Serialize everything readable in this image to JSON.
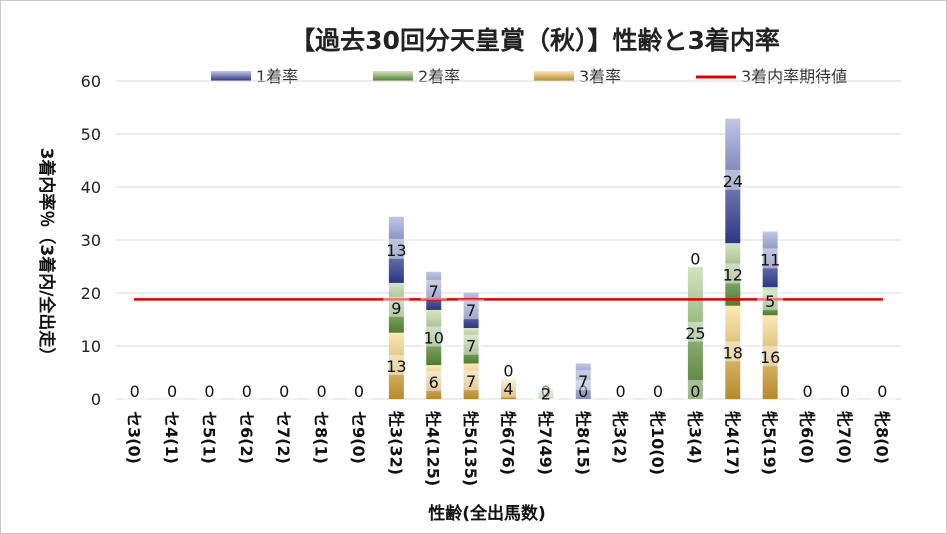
{
  "chart_data": {
    "type": "bar",
    "stacked": true,
    "title": "【過去30回分天皇賞（秋）】性齢と3着内率",
    "xlabel": "性齢(全出馬数)",
    "ylabel": "3着内率％（3着内/全出走）",
    "ylim": [
      0,
      60
    ],
    "yticks": [
      "0",
      "10",
      "20",
      "30",
      "40",
      "50",
      "60"
    ],
    "categories": [
      "セ3(0)",
      "セ4(1)",
      "セ5(1)",
      "セ6(2)",
      "セ7(2)",
      "セ8(1)",
      "セ9(0)",
      "牡3(32)",
      "牡4(125)",
      "牡5(135)",
      "牡6(76)",
      "牡7(49)",
      "牡8(15)",
      "牝3(2)",
      "牝10(0)",
      "牝3(4)",
      "牝4(17)",
      "牝5(19)",
      "牝6(0)",
      "牝7(0)",
      "牝8(0)"
    ],
    "series": [
      {
        "name": "3着率",
        "color": "#c9a032",
        "values": [
          0,
          0,
          0,
          0,
          0,
          0,
          0,
          12.5,
          6.4,
          6.7,
          3.9,
          0,
          0,
          0,
          0,
          0,
          17.6,
          15.8,
          0,
          0,
          0
        ],
        "labels": [
          "0",
          "0",
          "0",
          "0",
          "0",
          "0",
          "0",
          "13",
          "6",
          "7",
          "4",
          "0",
          "0",
          "0",
          "0",
          "0",
          "18",
          "16",
          "0",
          "0",
          "0"
        ]
      },
      {
        "name": "2着率",
        "color": "#5a8a3c",
        "values": [
          0,
          0,
          0,
          0,
          0,
          0,
          0,
          9.4,
          10.4,
          6.7,
          0,
          2.0,
          0,
          0,
          0,
          25,
          11.8,
          5.3,
          0,
          0,
          0
        ],
        "labels": [
          "",
          "",
          "",
          "",
          "",
          "",
          "",
          "9",
          "10",
          "7",
          "",
          "2",
          "",
          "",
          "",
          "25",
          "12",
          "5",
          "",
          "",
          ""
        ]
      },
      {
        "name": "1着率",
        "color": "#3a4694",
        "values": [
          0,
          0,
          0,
          0,
          0,
          0,
          0,
          12.5,
          7.2,
          6.7,
          0,
          0,
          6.7,
          0,
          0,
          0,
          23.5,
          10.5,
          0,
          0,
          0
        ],
        "labels": [
          "",
          "",
          "",
          "",
          "",
          "",
          "",
          "13",
          "7",
          "7",
          "0",
          "",
          "7",
          "",
          "",
          "0",
          "24",
          "11",
          "",
          "",
          ""
        ]
      }
    ],
    "reference_line": {
      "name": "3着内率期待値",
      "value": 18.8,
      "color": "#e00000"
    },
    "legend": [
      "1着率",
      "2着率",
      "3着率",
      "3着内率期待値"
    ],
    "legend_position": "top"
  }
}
